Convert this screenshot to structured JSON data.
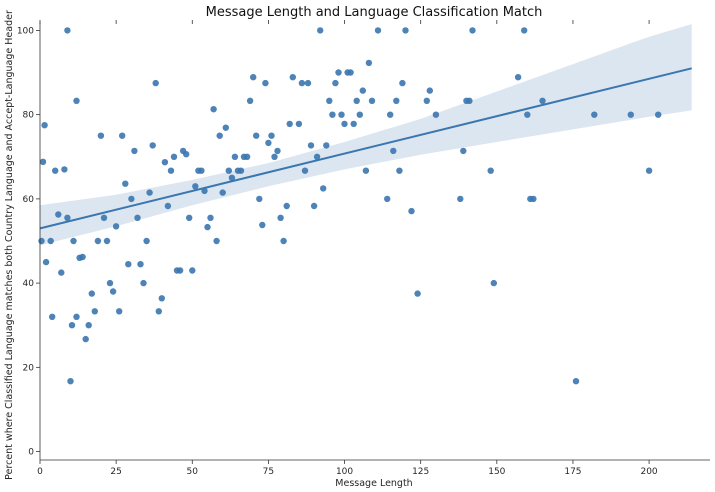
{
  "chart_data": {
    "type": "scatter",
    "title": "Message Length and Language Classification Match",
    "xlabel": "Message Length",
    "ylabel": "Percent where Classified Language matches both Country Language and Accept-Language Header",
    "xlim": [
      0,
      220
    ],
    "ylim": [
      -2,
      102
    ],
    "xticks": [
      0,
      25,
      50,
      75,
      100,
      125,
      150,
      175,
      200
    ],
    "yticks": [
      0,
      20,
      40,
      60,
      80,
      100
    ],
    "grid": false,
    "legend": false,
    "colors": {
      "points": "#3a76af",
      "line": "#3a76af",
      "band": "#c9d9ea"
    },
    "regression": {
      "x": [
        0,
        214
      ],
      "y": [
        53.0,
        91.0
      ],
      "ci_x": [
        0,
        25,
        50,
        75,
        100,
        125,
        150,
        175,
        200,
        214
      ],
      "ci_low": [
        49.0,
        53.5,
        58.5,
        63.0,
        67.0,
        70.5,
        73.5,
        76.5,
        79.5,
        81.0
      ],
      "ci_high": [
        58.5,
        61.0,
        64.5,
        68.5,
        73.5,
        79.0,
        85.5,
        92.0,
        98.5,
        101.5
      ]
    },
    "points": [
      [
        0.5,
        50
      ],
      [
        1,
        68.8
      ],
      [
        1.5,
        77.5
      ],
      [
        2,
        45
      ],
      [
        3.5,
        50
      ],
      [
        4,
        32
      ],
      [
        5,
        66.7
      ],
      [
        6,
        56.3
      ],
      [
        7,
        42.5
      ],
      [
        8,
        67
      ],
      [
        9,
        100
      ],
      [
        9,
        55.5
      ],
      [
        10,
        16.7
      ],
      [
        10.5,
        30
      ],
      [
        11,
        50
      ],
      [
        12,
        83.3
      ],
      [
        12,
        32
      ],
      [
        13,
        46
      ],
      [
        14,
        46.2
      ],
      [
        15,
        26.7
      ],
      [
        16,
        30
      ],
      [
        17,
        37.5
      ],
      [
        18,
        33.3
      ],
      [
        19,
        50
      ],
      [
        20,
        75
      ],
      [
        21,
        55.5
      ],
      [
        22,
        50
      ],
      [
        23,
        40
      ],
      [
        24,
        38
      ],
      [
        25,
        53.5
      ],
      [
        26,
        33.3
      ],
      [
        27,
        75
      ],
      [
        28,
        63.6
      ],
      [
        29,
        44.5
      ],
      [
        30,
        60
      ],
      [
        31,
        71.4
      ],
      [
        32,
        55.5
      ],
      [
        33,
        44.5
      ],
      [
        34,
        40
      ],
      [
        35,
        50
      ],
      [
        36,
        61.5
      ],
      [
        37,
        72.7
      ],
      [
        38,
        87.5
      ],
      [
        39,
        33.3
      ],
      [
        40,
        36.4
      ],
      [
        41,
        68.7
      ],
      [
        42,
        58.3
      ],
      [
        43,
        66.7
      ],
      [
        44,
        70
      ],
      [
        45,
        43
      ],
      [
        46,
        43
      ],
      [
        47,
        71.4
      ],
      [
        48,
        70.6
      ],
      [
        49,
        55.5
      ],
      [
        50,
        43
      ],
      [
        51,
        63
      ],
      [
        52,
        66.7
      ],
      [
        53,
        66.7
      ],
      [
        54,
        61.9
      ],
      [
        55,
        53.3
      ],
      [
        56,
        55.5
      ],
      [
        57,
        81.3
      ],
      [
        58,
        50
      ],
      [
        59,
        75
      ],
      [
        60,
        61.5
      ],
      [
        61,
        76.9
      ],
      [
        62,
        66.7
      ],
      [
        63,
        65
      ],
      [
        64,
        70
      ],
      [
        65,
        66.7
      ],
      [
        66,
        66.7
      ],
      [
        67,
        70
      ],
      [
        68,
        70
      ],
      [
        69,
        83.3
      ],
      [
        70,
        88.9
      ],
      [
        71,
        75
      ],
      [
        72,
        60
      ],
      [
        73,
        53.8
      ],
      [
        74,
        87.5
      ],
      [
        75,
        73.3
      ],
      [
        76,
        75
      ],
      [
        77,
        70
      ],
      [
        78,
        71.4
      ],
      [
        79,
        55.5
      ],
      [
        80,
        50
      ],
      [
        81,
        58.3
      ],
      [
        82,
        77.8
      ],
      [
        83,
        88.9
      ],
      [
        85,
        77.8
      ],
      [
        86,
        87.5
      ],
      [
        87,
        66.7
      ],
      [
        88,
        87.5
      ],
      [
        89,
        72.7
      ],
      [
        90,
        58.3
      ],
      [
        91,
        70
      ],
      [
        92,
        100
      ],
      [
        93,
        62.5
      ],
      [
        94,
        72.7
      ],
      [
        95,
        83.3
      ],
      [
        96,
        80
      ],
      [
        97,
        87.5
      ],
      [
        98,
        90
      ],
      [
        99,
        80
      ],
      [
        100,
        77.8
      ],
      [
        101,
        90
      ],
      [
        102,
        90
      ],
      [
        103,
        77.8
      ],
      [
        104,
        83.3
      ],
      [
        105,
        80
      ],
      [
        106,
        85.7
      ],
      [
        107,
        66.7
      ],
      [
        108,
        92.3
      ],
      [
        109,
        83.3
      ],
      [
        111,
        100
      ],
      [
        114,
        60
      ],
      [
        115,
        80
      ],
      [
        116,
        71.4
      ],
      [
        117,
        83.3
      ],
      [
        118,
        66.7
      ],
      [
        119,
        87.5
      ],
      [
        120,
        100
      ],
      [
        122,
        57.1
      ],
      [
        124,
        37.5
      ],
      [
        127,
        83.3
      ],
      [
        128,
        85.7
      ],
      [
        130,
        80
      ],
      [
        138,
        60
      ],
      [
        139,
        71.4
      ],
      [
        140,
        83.3
      ],
      [
        141,
        83.3
      ],
      [
        142,
        100
      ],
      [
        148,
        66.7
      ],
      [
        149,
        40
      ],
      [
        157,
        88.9
      ],
      [
        159,
        100
      ],
      [
        160,
        80
      ],
      [
        161,
        60
      ],
      [
        162,
        60
      ],
      [
        165,
        83.3
      ],
      [
        176,
        16.7
      ],
      [
        182,
        80
      ],
      [
        194,
        80
      ],
      [
        200,
        66.7
      ],
      [
        203,
        80
      ]
    ]
  }
}
